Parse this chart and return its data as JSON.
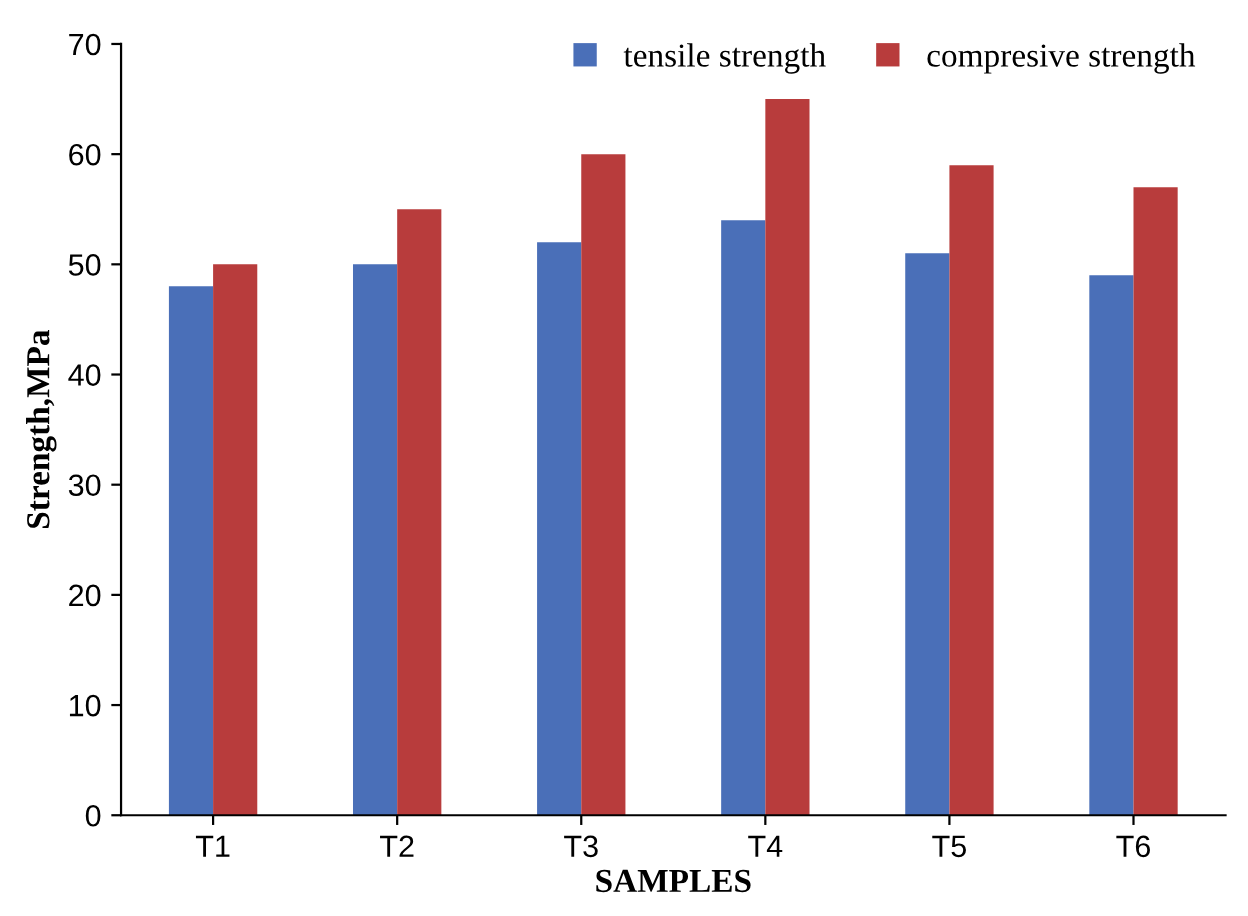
{
  "chart_data": {
    "type": "bar",
    "xlabel": "SAMPLES",
    "ylabel": "Strength,MPa",
    "categories": [
      "T1",
      "T2",
      "T3",
      "T4",
      "T5",
      "T6"
    ],
    "series": [
      {
        "name": "tensile strength",
        "color": "#4a6fb8",
        "values": [
          48,
          50,
          52,
          54,
          51,
          49
        ]
      },
      {
        "name": "compresive strength",
        "color": "#b83c3c",
        "values": [
          50,
          55,
          60,
          65,
          59,
          57
        ]
      }
    ],
    "ylim": [
      0,
      70
    ],
    "yticks": [
      0,
      10,
      20,
      30,
      40,
      50,
      60,
      70
    ],
    "grid": false,
    "legend": "top right"
  }
}
